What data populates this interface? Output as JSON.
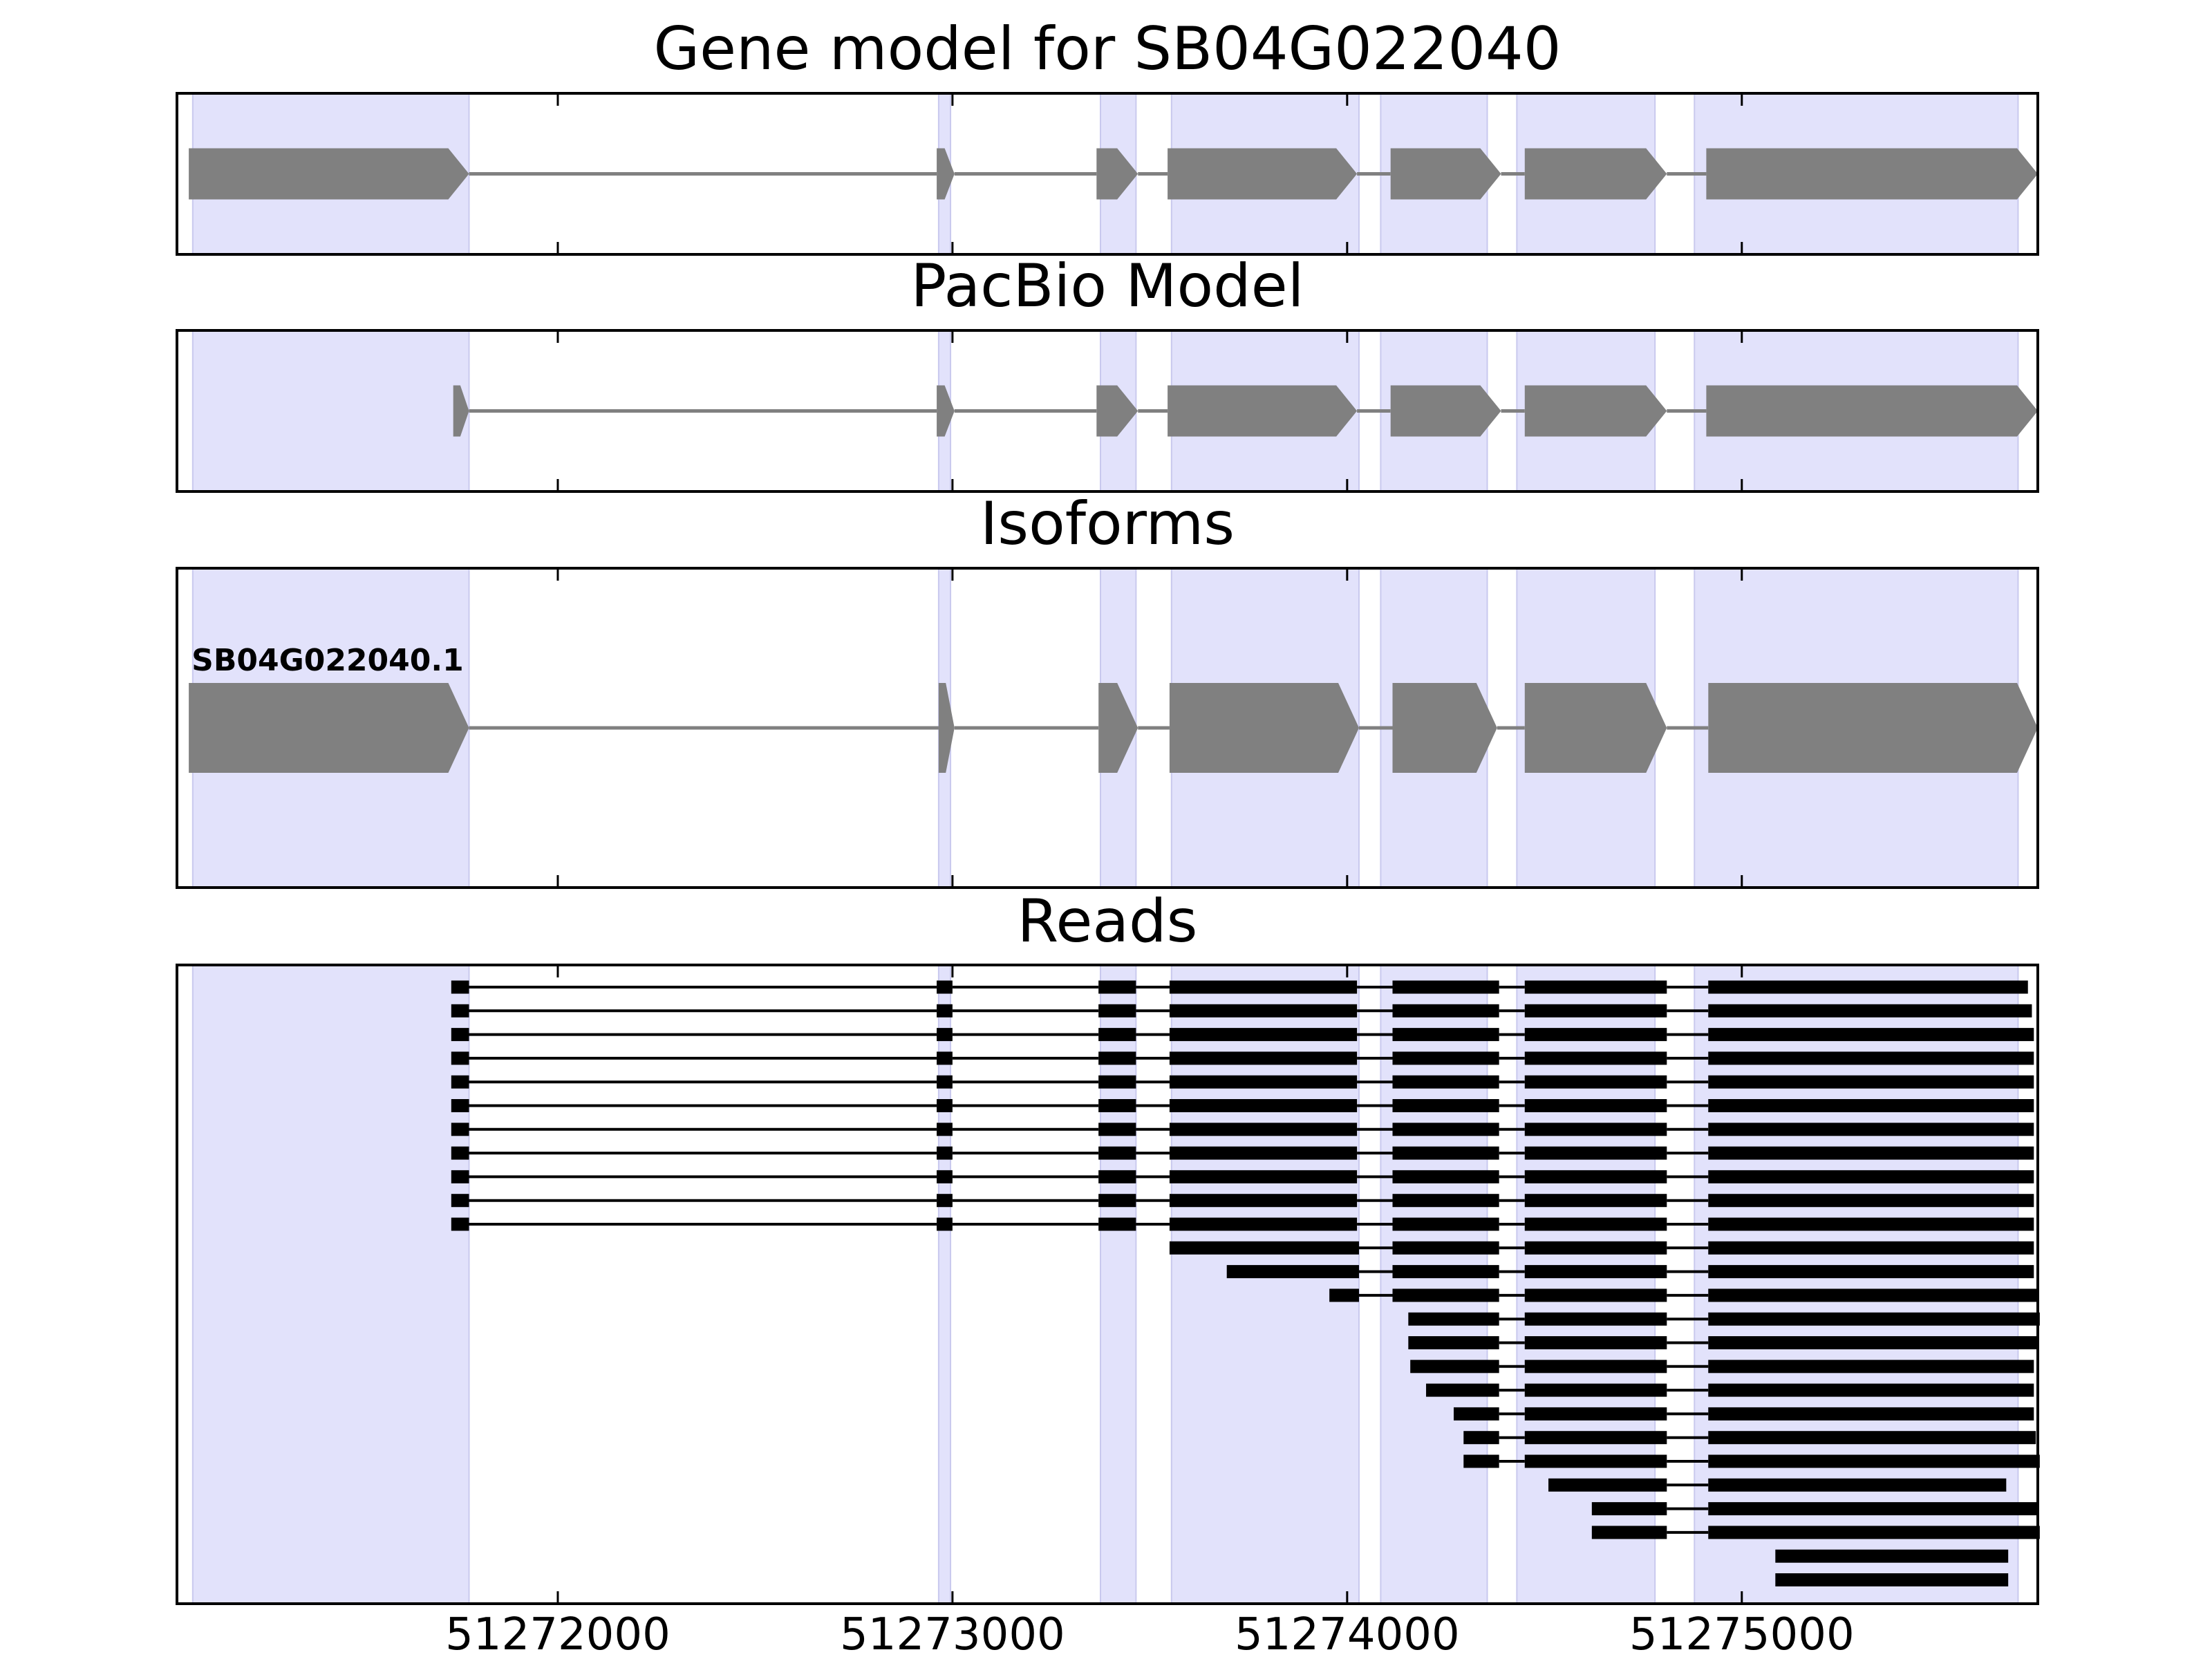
{
  "figure": {
    "background": "#ffffff",
    "exon_shade_color": "#e2e2fb",
    "exon_shade_edge": "#c9c9ee",
    "model_color": "#808080",
    "read_color": "#000000",
    "frame_color": "#000000"
  },
  "chart_data": {
    "type": "gene-structure",
    "xlim": [
      51271035,
      51275750
    ],
    "xticks": [
      51272000,
      51273000,
      51274000,
      51275000
    ],
    "xtick_labels": [
      "51272000",
      "51273000",
      "51274000",
      "51275000"
    ],
    "shaded_exons": [
      [
        51271075,
        51271775
      ],
      [
        51272965,
        51272995
      ],
      [
        51273375,
        51273465
      ],
      [
        51273555,
        51274030
      ],
      [
        51274085,
        51274355
      ],
      [
        51274430,
        51274780
      ],
      [
        51274880,
        51275700
      ]
    ],
    "panels": [
      {
        "title": "Gene model for SB04G022040",
        "kind": "model",
        "strand": "+",
        "exons": [
          [
            51271065,
            51271775
          ],
          [
            51272960,
            51273005
          ],
          [
            51273365,
            51273470
          ],
          [
            51273545,
            51274025
          ],
          [
            51274110,
            51274390
          ],
          [
            51274450,
            51274810
          ],
          [
            51274910,
            51275750
          ]
        ]
      },
      {
        "title": "PacBio Model",
        "kind": "model",
        "strand": "+",
        "exons": [
          [
            51271735,
            51271775
          ],
          [
            51272960,
            51273005
          ],
          [
            51273365,
            51273470
          ],
          [
            51273545,
            51274025
          ],
          [
            51274110,
            51274390
          ],
          [
            51274450,
            51274810
          ],
          [
            51274910,
            51275750
          ]
        ]
      },
      {
        "title": "Isoforms",
        "kind": "model",
        "strand": "+",
        "isoform_label": "SB04G022040.1",
        "exons": [
          [
            51271065,
            51271775
          ],
          [
            51272965,
            51273005
          ],
          [
            51273370,
            51273470
          ],
          [
            51273550,
            51274030
          ],
          [
            51274115,
            51274380
          ],
          [
            51274450,
            51274810
          ],
          [
            51274915,
            51275750
          ]
        ]
      },
      {
        "title": "Reads",
        "kind": "reads",
        "reads": [
          [
            [
              51271730,
              51271775
            ],
            [
              51272960,
              51273000
            ],
            [
              51273370,
              51273465
            ],
            [
              51273550,
              51274025
            ],
            [
              51274115,
              51274385
            ],
            [
              51274450,
              51274810
            ],
            [
              51274915,
              51275725
            ]
          ],
          [
            [
              51271730,
              51271775
            ],
            [
              51272960,
              51273000
            ],
            [
              51273370,
              51273465
            ],
            [
              51273550,
              51274025
            ],
            [
              51274115,
              51274385
            ],
            [
              51274450,
              51274810
            ],
            [
              51274915,
              51275735
            ]
          ],
          [
            [
              51271730,
              51271775
            ],
            [
              51272960,
              51273000
            ],
            [
              51273370,
              51273465
            ],
            [
              51273550,
              51274025
            ],
            [
              51274115,
              51274385
            ],
            [
              51274450,
              51274810
            ],
            [
              51274915,
              51275740
            ]
          ],
          [
            [
              51271730,
              51271775
            ],
            [
              51272960,
              51273000
            ],
            [
              51273370,
              51273465
            ],
            [
              51273550,
              51274025
            ],
            [
              51274115,
              51274385
            ],
            [
              51274450,
              51274810
            ],
            [
              51274915,
              51275740
            ]
          ],
          [
            [
              51271730,
              51271775
            ],
            [
              51272960,
              51273000
            ],
            [
              51273370,
              51273465
            ],
            [
              51273550,
              51274025
            ],
            [
              51274115,
              51274385
            ],
            [
              51274450,
              51274810
            ],
            [
              51274915,
              51275740
            ]
          ],
          [
            [
              51271730,
              51271775
            ],
            [
              51272960,
              51273000
            ],
            [
              51273370,
              51273465
            ],
            [
              51273550,
              51274025
            ],
            [
              51274115,
              51274385
            ],
            [
              51274450,
              51274810
            ],
            [
              51274915,
              51275740
            ]
          ],
          [
            [
              51271730,
              51271775
            ],
            [
              51272960,
              51273000
            ],
            [
              51273370,
              51273465
            ],
            [
              51273550,
              51274025
            ],
            [
              51274115,
              51274385
            ],
            [
              51274450,
              51274810
            ],
            [
              51274915,
              51275740
            ]
          ],
          [
            [
              51271730,
              51271775
            ],
            [
              51272960,
              51273000
            ],
            [
              51273370,
              51273465
            ],
            [
              51273550,
              51274025
            ],
            [
              51274115,
              51274385
            ],
            [
              51274450,
              51274810
            ],
            [
              51274915,
              51275740
            ]
          ],
          [
            [
              51271730,
              51271775
            ],
            [
              51272960,
              51273000
            ],
            [
              51273370,
              51273465
            ],
            [
              51273550,
              51274025
            ],
            [
              51274115,
              51274385
            ],
            [
              51274450,
              51274810
            ],
            [
              51274915,
              51275740
            ]
          ],
          [
            [
              51271730,
              51271775
            ],
            [
              51272960,
              51273000
            ],
            [
              51273370,
              51273465
            ],
            [
              51273550,
              51274025
            ],
            [
              51274115,
              51274385
            ],
            [
              51274450,
              51274810
            ],
            [
              51274915,
              51275740
            ]
          ],
          [
            [
              51271730,
              51271775
            ],
            [
              51272960,
              51273000
            ],
            [
              51273370,
              51273465
            ],
            [
              51273550,
              51274025
            ],
            [
              51274115,
              51274385
            ],
            [
              51274450,
              51274810
            ],
            [
              51274915,
              51275740
            ]
          ],
          [
            [
              51273550,
              51274030
            ],
            [
              51274115,
              51274385
            ],
            [
              51274450,
              51274810
            ],
            [
              51274915,
              51275740
            ]
          ],
          [
            [
              51273695,
              51274030
            ],
            [
              51274115,
              51274385
            ],
            [
              51274450,
              51274810
            ],
            [
              51274915,
              51275740
            ]
          ],
          [
            [
              51273955,
              51274030
            ],
            [
              51274115,
              51274385
            ],
            [
              51274450,
              51274810
            ],
            [
              51274915,
              51275750
            ]
          ],
          [
            [
              51274155,
              51274385
            ],
            [
              51274450,
              51274810
            ],
            [
              51274915,
              51275755
            ]
          ],
          [
            [
              51274155,
              51274385
            ],
            [
              51274450,
              51274810
            ],
            [
              51274915,
              51275750
            ]
          ],
          [
            [
              51274160,
              51274385
            ],
            [
              51274450,
              51274810
            ],
            [
              51274915,
              51275740
            ]
          ],
          [
            [
              51274200,
              51274385
            ],
            [
              51274450,
              51274810
            ],
            [
              51274915,
              51275740
            ]
          ],
          [
            [
              51274270,
              51274385
            ],
            [
              51274450,
              51274810
            ],
            [
              51274915,
              51275740
            ]
          ],
          [
            [
              51274295,
              51274385
            ],
            [
              51274450,
              51274810
            ],
            [
              51274915,
              51275745
            ]
          ],
          [
            [
              51274295,
              51274385
            ],
            [
              51274450,
              51274810
            ],
            [
              51274915,
              51275755
            ]
          ],
          [
            [
              51274510,
              51274810
            ],
            [
              51274915,
              51275670
            ]
          ],
          [
            [
              51274620,
              51274810
            ],
            [
              51274915,
              51275750
            ]
          ],
          [
            [
              51274620,
              51274810
            ],
            [
              51274915,
              51275755
            ]
          ],
          [
            [
              51275085,
              51275675
            ]
          ],
          [
            [
              51275085,
              51275675
            ]
          ]
        ]
      }
    ]
  }
}
